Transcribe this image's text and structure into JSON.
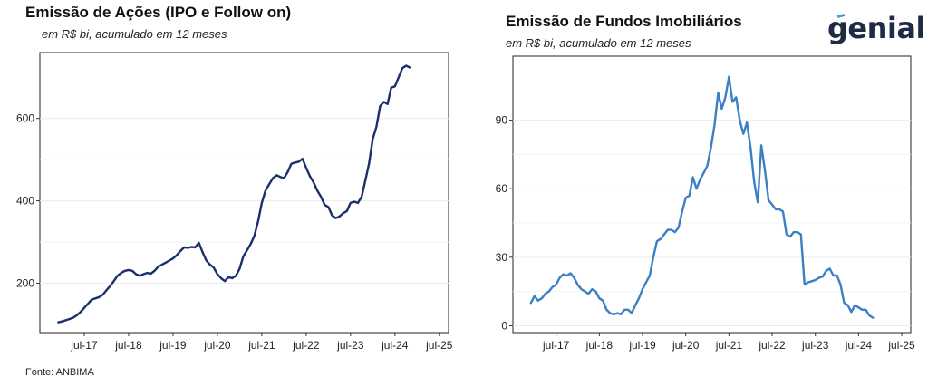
{
  "chart_data": [
    {
      "type": "line",
      "title": "Emissão de Ações (IPO e Follow on)",
      "subtitle": "em R$ bi, acumulado em 12 meses",
      "color": "#1b2f6e",
      "ylim": [
        80,
        760
      ],
      "yticks": [
        200,
        400,
        600
      ],
      "xticks": [
        "jul-17",
        "jul-18",
        "jul-19",
        "jul-20",
        "jul-21",
        "jul-22",
        "jul-23",
        "jul-24",
        "jul-25"
      ],
      "grid": "horizontal",
      "series": [
        {
          "values": [
            [
              "2016-12",
              105
            ],
            [
              "2017-01",
              107
            ],
            [
              "2017-02",
              110
            ],
            [
              "2017-03",
              113
            ],
            [
              "2017-04",
              116
            ],
            [
              "2017-05",
              122
            ],
            [
              "2017-06",
              130
            ],
            [
              "2017-07",
              140
            ],
            [
              "2017-08",
              150
            ],
            [
              "2017-09",
              160
            ],
            [
              "2017-10",
              163
            ],
            [
              "2017-11",
              166
            ],
            [
              "2017-12",
              172
            ],
            [
              "2018-01",
              183
            ],
            [
              "2018-02",
              193
            ],
            [
              "2018-03",
              205
            ],
            [
              "2018-04",
              218
            ],
            [
              "2018-05",
              225
            ],
            [
              "2018-06",
              230
            ],
            [
              "2018-07",
              232
            ],
            [
              "2018-08",
              230
            ],
            [
              "2018-09",
              222
            ],
            [
              "2018-10",
              218
            ],
            [
              "2018-11",
              222
            ],
            [
              "2018-12",
              225
            ],
            [
              "2019-01",
              223
            ],
            [
              "2019-02",
              230
            ],
            [
              "2019-03",
              240
            ],
            [
              "2019-04",
              245
            ],
            [
              "2019-05",
              250
            ],
            [
              "2019-06",
              255
            ],
            [
              "2019-07",
              260
            ],
            [
              "2019-08",
              268
            ],
            [
              "2019-09",
              278
            ],
            [
              "2019-10",
              287
            ],
            [
              "2019-11",
              286
            ],
            [
              "2019-12",
              288
            ],
            [
              "2020-01",
              287
            ],
            [
              "2020-02",
              298
            ],
            [
              "2020-03",
              275
            ],
            [
              "2020-04",
              255
            ],
            [
              "2020-05",
              245
            ],
            [
              "2020-06",
              238
            ],
            [
              "2020-07",
              222
            ],
            [
              "2020-08",
              212
            ],
            [
              "2020-09",
              205
            ],
            [
              "2020-10",
              215
            ],
            [
              "2020-11",
              212
            ],
            [
              "2020-12",
              218
            ],
            [
              "2021-01",
              235
            ],
            [
              "2021-02",
              265
            ],
            [
              "2021-03",
              280
            ],
            [
              "2021-04",
              295
            ],
            [
              "2021-05",
              315
            ],
            [
              "2021-06",
              350
            ],
            [
              "2021-07",
              395
            ],
            [
              "2021-08",
              425
            ],
            [
              "2021-09",
              440
            ],
            [
              "2021-10",
              455
            ],
            [
              "2021-11",
              462
            ],
            [
              "2021-12",
              458
            ],
            [
              "2022-01",
              455
            ],
            [
              "2022-02",
              470
            ],
            [
              "2022-03",
              490
            ],
            [
              "2022-04",
              493
            ],
            [
              "2022-05",
              495
            ],
            [
              "2022-06",
              502
            ],
            [
              "2022-07",
              480
            ],
            [
              "2022-08",
              460
            ],
            [
              "2022-09",
              445
            ],
            [
              "2022-10",
              425
            ],
            [
              "2022-11",
              410
            ],
            [
              "2022-12",
              390
            ],
            [
              "2023-01",
              385
            ],
            [
              "2023-02",
              365
            ],
            [
              "2023-03",
              358
            ],
            [
              "2023-04",
              362
            ],
            [
              "2023-05",
              370
            ],
            [
              "2023-06",
              375
            ],
            [
              "2023-07",
              395
            ],
            [
              "2023-08",
              398
            ],
            [
              "2023-09",
              395
            ],
            [
              "2023-10",
              410
            ],
            [
              "2023-11",
              450
            ],
            [
              "2023-12",
              490
            ],
            [
              "2024-01",
              550
            ],
            [
              "2024-02",
              580
            ],
            [
              "2024-03",
              630
            ],
            [
              "2024-04",
              640
            ],
            [
              "2024-05",
              635
            ],
            [
              "2024-06",
              675
            ],
            [
              "2024-07",
              678
            ],
            [
              "2024-08",
              700
            ],
            [
              "2024-09",
              722
            ],
            [
              "2024-10",
              728
            ],
            [
              "2024-11",
              724
            ]
          ]
        }
      ]
    },
    {
      "type": "line",
      "title": "Emissão de Fundos Imobiliários",
      "subtitle": "em R$ bi, acumulado em 12 meses",
      "color": "#3b7fc4",
      "ylim": [
        -3,
        118
      ],
      "yticks": [
        0,
        30,
        60,
        90
      ],
      "xticks": [
        "jul-17",
        "jul-18",
        "jul-19",
        "jul-20",
        "jul-21",
        "jul-22",
        "jul-23",
        "jul-24",
        "jul-25"
      ],
      "grid": "horizontal",
      "series": [
        {
          "values": [
            [
              "2016-12",
              10
            ],
            [
              "2017-01",
              13
            ],
            [
              "2017-02",
              11
            ],
            [
              "2017-03",
              12
            ],
            [
              "2017-04",
              14
            ],
            [
              "2017-05",
              15
            ],
            [
              "2017-06",
              17
            ],
            [
              "2017-07",
              18
            ],
            [
              "2017-08",
              21
            ],
            [
              "2017-09",
              22.5
            ],
            [
              "2017-10",
              22
            ],
            [
              "2017-11",
              23
            ],
            [
              "2017-12",
              21
            ],
            [
              "2018-01",
              18
            ],
            [
              "2018-02",
              16
            ],
            [
              "2018-03",
              15
            ],
            [
              "2018-04",
              14
            ],
            [
              "2018-05",
              16
            ],
            [
              "2018-06",
              15
            ],
            [
              "2018-07",
              12
            ],
            [
              "2018-08",
              11
            ],
            [
              "2018-09",
              7
            ],
            [
              "2018-10",
              5.5
            ],
            [
              "2018-11",
              5
            ],
            [
              "2018-12",
              5.5
            ],
            [
              "2019-01",
              5
            ],
            [
              "2019-02",
              7
            ],
            [
              "2019-03",
              7
            ],
            [
              "2019-04",
              5.5
            ],
            [
              "2019-05",
              9
            ],
            [
              "2019-06",
              12
            ],
            [
              "2019-07",
              16
            ],
            [
              "2019-08",
              19
            ],
            [
              "2019-09",
              22
            ],
            [
              "2019-10",
              30
            ],
            [
              "2019-11",
              37
            ],
            [
              "2019-12",
              38
            ],
            [
              "2020-01",
              40
            ],
            [
              "2020-02",
              42
            ],
            [
              "2020-03",
              42
            ],
            [
              "2020-04",
              41
            ],
            [
              "2020-05",
              43
            ],
            [
              "2020-06",
              50
            ],
            [
              "2020-07",
              56
            ],
            [
              "2020-08",
              57
            ],
            [
              "2020-09",
              65
            ],
            [
              "2020-10",
              60
            ],
            [
              "2020-11",
              64
            ],
            [
              "2020-12",
              67
            ],
            [
              "2021-01",
              70
            ],
            [
              "2021-02",
              78
            ],
            [
              "2021-03",
              88
            ],
            [
              "2021-04",
              102
            ],
            [
              "2021-05",
              95
            ],
            [
              "2021-06",
              100
            ],
            [
              "2021-07",
              109
            ],
            [
              "2021-08",
              98
            ],
            [
              "2021-09",
              100
            ],
            [
              "2021-10",
              90
            ],
            [
              "2021-11",
              84
            ],
            [
              "2021-12",
              89
            ],
            [
              "2022-01",
              78
            ],
            [
              "2022-02",
              63
            ],
            [
              "2022-03",
              54
            ],
            [
              "2022-04",
              79
            ],
            [
              "2022-05",
              68
            ],
            [
              "2022-06",
              55
            ],
            [
              "2022-07",
              53
            ],
            [
              "2022-08",
              51
            ],
            [
              "2022-09",
              51
            ],
            [
              "2022-10",
              50
            ],
            [
              "2022-11",
              40
            ],
            [
              "2022-12",
              39
            ],
            [
              "2023-01",
              41
            ],
            [
              "2023-02",
              41
            ],
            [
              "2023-03",
              40
            ],
            [
              "2023-04",
              18
            ],
            [
              "2023-05",
              19
            ],
            [
              "2023-06",
              19.5
            ],
            [
              "2023-07",
              20
            ],
            [
              "2023-08",
              21
            ],
            [
              "2023-09",
              21.5
            ],
            [
              "2023-10",
              24
            ],
            [
              "2023-11",
              25
            ],
            [
              "2023-12",
              22
            ],
            [
              "2024-01",
              22
            ],
            [
              "2024-02",
              18
            ],
            [
              "2024-03",
              10
            ],
            [
              "2024-04",
              9
            ],
            [
              "2024-05",
              6
            ],
            [
              "2024-06",
              9
            ],
            [
              "2024-07",
              8
            ],
            [
              "2024-08",
              7
            ],
            [
              "2024-09",
              7
            ],
            [
              "2024-10",
              4.5
            ],
            [
              "2024-11",
              3.5
            ]
          ]
        }
      ]
    }
  ],
  "source": "Fonte: ANBIMA",
  "logo_text": "genial",
  "logo_icon": "genial-logo"
}
